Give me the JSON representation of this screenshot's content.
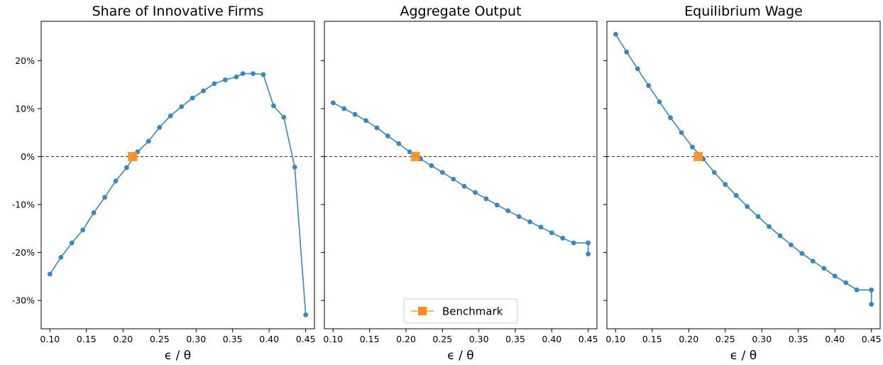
{
  "chart_data": [
    {
      "type": "line",
      "title": "Share of Innovative Firms",
      "xlabel": "ϵ / θ",
      "ylabel": "",
      "xlim": [
        0.088,
        0.462
      ],
      "ylim": [
        -35.9,
        28.2
      ],
      "xticks": [
        "0.10",
        "0.15",
        "0.20",
        "0.25",
        "0.30",
        "0.35",
        "0.40",
        "0.45"
      ],
      "yticks": [
        "20%",
        "10%",
        "0%",
        "-10%",
        "-20%",
        "-30%"
      ],
      "reference_line": 0,
      "series": [
        {
          "x": [
            0.1,
            0.115,
            0.13,
            0.145,
            0.16,
            0.175,
            0.19,
            0.205,
            0.22,
            0.235,
            0.25,
            0.265,
            0.28,
            0.295,
            0.31,
            0.325,
            0.34,
            0.355,
            0.364,
            0.378,
            0.392,
            0.406,
            0.42,
            0.435,
            0.45
          ],
          "values": [
            -24.5,
            -21.0,
            -18.0,
            -15.3,
            -11.7,
            -8.5,
            -5.1,
            -2.3,
            1.0,
            3.2,
            6.1,
            8.5,
            10.4,
            12.2,
            13.7,
            15.2,
            16.0,
            16.6,
            17.3,
            17.3,
            17.1,
            10.6,
            8.2,
            -2.2,
            -33.0
          ]
        }
      ],
      "benchmark": {
        "x": 0.213,
        "value": 0
      }
    },
    {
      "type": "line",
      "title": "Aggregate Output",
      "xlabel": "ϵ / θ",
      "ylabel": "",
      "xlim": [
        0.088,
        0.462
      ],
      "ylim": [
        -35.9,
        28.2
      ],
      "xticks": [
        "0.10",
        "0.15",
        "0.20",
        "0.25",
        "0.30",
        "0.35",
        "0.40",
        "0.45"
      ],
      "reference_line": 0,
      "series": [
        {
          "x": [
            0.1,
            0.115,
            0.13,
            0.145,
            0.16,
            0.175,
            0.19,
            0.205,
            0.22,
            0.235,
            0.25,
            0.265,
            0.28,
            0.295,
            0.31,
            0.325,
            0.34,
            0.355,
            0.37,
            0.385,
            0.4,
            0.415,
            0.43,
            0.45
          ],
          "values": [
            11.2,
            10.0,
            8.8,
            7.5,
            6.0,
            4.3,
            2.7,
            1.0,
            -0.5,
            -1.9,
            -3.3,
            -4.7,
            -6.2,
            -7.5,
            -8.8,
            -10.1,
            -11.3,
            -12.5,
            -13.6,
            -14.7,
            -15.9,
            -17.0,
            -18.0,
            -18.0
          ]
        },
        {
          "x": [
            0.45
          ],
          "values": [
            -20.3
          ]
        }
      ],
      "benchmark": {
        "x": 0.213,
        "value": 0
      },
      "legend": {
        "label": "Benchmark",
        "placement": "lower center"
      }
    },
    {
      "type": "line",
      "title": "Equilibrium Wage",
      "xlabel": "ϵ / θ",
      "ylabel": "",
      "xlim": [
        0.088,
        0.462
      ],
      "ylim": [
        -35.9,
        28.2
      ],
      "xticks": [
        "0.10",
        "0.15",
        "0.20",
        "0.25",
        "0.30",
        "0.35",
        "0.40",
        "0.45"
      ],
      "reference_line": 0,
      "series": [
        {
          "x": [
            0.1,
            0.115,
            0.13,
            0.145,
            0.16,
            0.175,
            0.19,
            0.205,
            0.22,
            0.235,
            0.25,
            0.265,
            0.28,
            0.295,
            0.31,
            0.325,
            0.34,
            0.355,
            0.37,
            0.385,
            0.4,
            0.415,
            0.43,
            0.45
          ],
          "values": [
            25.5,
            21.8,
            18.3,
            14.8,
            11.4,
            8.1,
            5.0,
            2.0,
            -0.5,
            -3.3,
            -5.8,
            -8.1,
            -10.4,
            -12.5,
            -14.6,
            -16.5,
            -18.4,
            -20.2,
            -21.8,
            -23.3,
            -24.9,
            -26.3,
            -27.8,
            -27.8
          ]
        },
        {
          "x": [
            0.45
          ],
          "values": [
            -30.8
          ]
        }
      ],
      "benchmark": {
        "x": 0.213,
        "value": 0
      }
    }
  ],
  "colors": {
    "line": "#3a87bd",
    "benchmark": "#ff8c1a",
    "benchmark_edge": "#ff9933",
    "refline": "#333333"
  }
}
